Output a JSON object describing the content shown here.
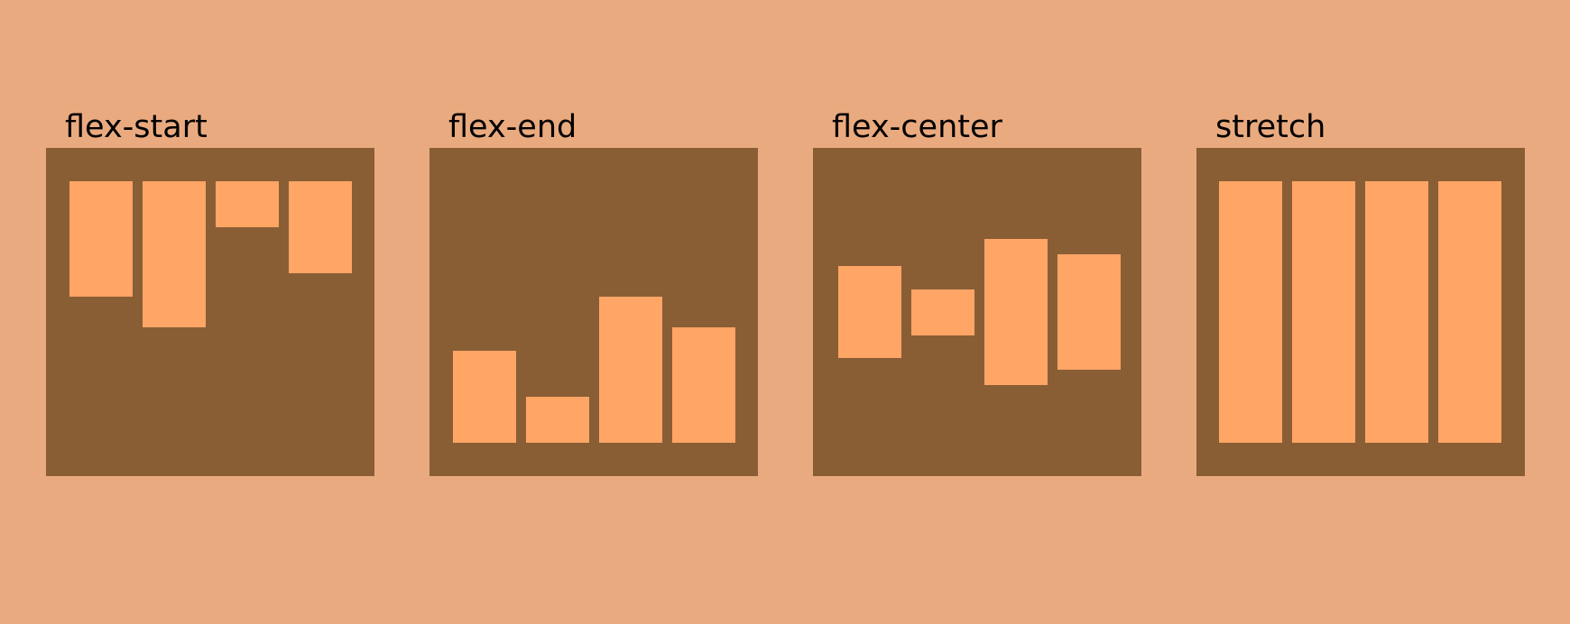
{
  "colors": {
    "background": "#eaaa7f",
    "container": "#8a5e35",
    "item": "#ffa566",
    "label": "#000000"
  },
  "panels": [
    {
      "label": "flex-start",
      "align": "start",
      "item_sizes": [
        0.44,
        0.56,
        0.175,
        0.35
      ]
    },
    {
      "label": "flex-end",
      "align": "end",
      "item_sizes": [
        0.35,
        0.175,
        0.56,
        0.44
      ]
    },
    {
      "label": "flex-center",
      "align": "center",
      "item_sizes": [
        0.35,
        0.175,
        0.56,
        0.44
      ]
    },
    {
      "label": "stretch",
      "align": "stretch",
      "item_sizes": [
        1,
        1,
        1,
        1
      ]
    }
  ]
}
